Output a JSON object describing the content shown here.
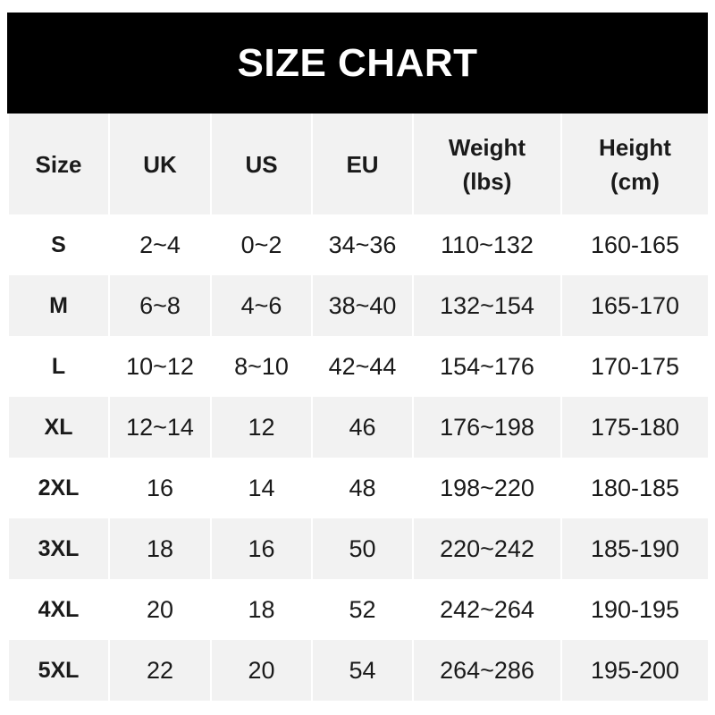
{
  "title": "SIZE CHART",
  "columns": [
    {
      "line1": "Size",
      "line2": ""
    },
    {
      "line1": "UK",
      "line2": ""
    },
    {
      "line1": "US",
      "line2": ""
    },
    {
      "line1": "EU",
      "line2": ""
    },
    {
      "line1": "Weight",
      "line2": "(lbs)"
    },
    {
      "line1": "Height",
      "line2": "(cm)"
    }
  ],
  "rows": [
    [
      "S",
      "2~4",
      "0~2",
      "34~36",
      "110~132",
      "160-165"
    ],
    [
      "M",
      "6~8",
      "4~6",
      "38~40",
      "132~154",
      "165-170"
    ],
    [
      "L",
      "10~12",
      "8~10",
      "42~44",
      "154~176",
      "170-175"
    ],
    [
      "XL",
      "12~14",
      "12",
      "46",
      "176~198",
      "175-180"
    ],
    [
      "2XL",
      "16",
      "14",
      "48",
      "198~220",
      "180-185"
    ],
    [
      "3XL",
      "18",
      "16",
      "50",
      "220~242",
      "185-190"
    ],
    [
      "4XL",
      "20",
      "18",
      "52",
      "242~264",
      "190-195"
    ],
    [
      "5XL",
      "22",
      "20",
      "54",
      "264~286",
      "195-200"
    ]
  ],
  "colors": {
    "header_bg": "#000000",
    "header_text": "#ffffff",
    "stripe": "#f2f2f2"
  }
}
